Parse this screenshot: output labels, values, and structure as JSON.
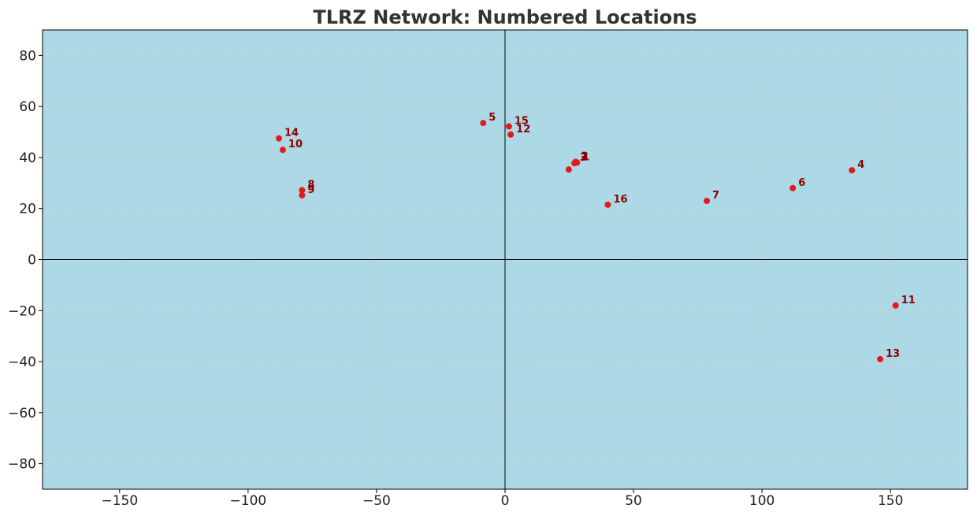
{
  "chart_data": {
    "type": "scatter",
    "title": "TLRZ Network: Numbered Locations",
    "xlabel": "",
    "ylabel": "",
    "xlim": [
      -180,
      180
    ],
    "ylim": [
      -90,
      90
    ],
    "xticks": [
      -150,
      -100,
      -50,
      0,
      50,
      100,
      150
    ],
    "yticks": [
      -80,
      -60,
      -40,
      -20,
      0,
      20,
      40,
      60,
      80
    ],
    "grid": true,
    "background_color": "#add8e6",
    "point_color": "#e31a1c",
    "label_color": "#8b0000",
    "points": [
      {
        "label": "1",
        "x": 28,
        "y": 38
      },
      {
        "label": "2",
        "x": 27.5,
        "y": 38.3
      },
      {
        "label": "3",
        "x": 27,
        "y": 37.8
      },
      {
        "label": "4",
        "x": 135,
        "y": 35
      },
      {
        "label": "5",
        "x": -8.5,
        "y": 53.5
      },
      {
        "label": "6",
        "x": 112,
        "y": 28
      },
      {
        "label": "7",
        "x": 78.5,
        "y": 23
      },
      {
        "label": "8",
        "x": -79,
        "y": 27.2
      },
      {
        "label": "9",
        "x": -79,
        "y": 25.2
      },
      {
        "label": "10",
        "x": -86.5,
        "y": 43
      },
      {
        "label": "11",
        "x": 152,
        "y": -18
      },
      {
        "label": "12",
        "x": 2.2,
        "y": 49
      },
      {
        "label": "13",
        "x": 146,
        "y": -39
      },
      {
        "label": "14",
        "x": -88,
        "y": 47.5
      },
      {
        "label": "15",
        "x": 1.5,
        "y": 52.2
      },
      {
        "label": "16",
        "x": 40,
        "y": 21.5
      },
      {
        "label": "",
        "x": 24.8,
        "y": 35.3
      }
    ]
  }
}
